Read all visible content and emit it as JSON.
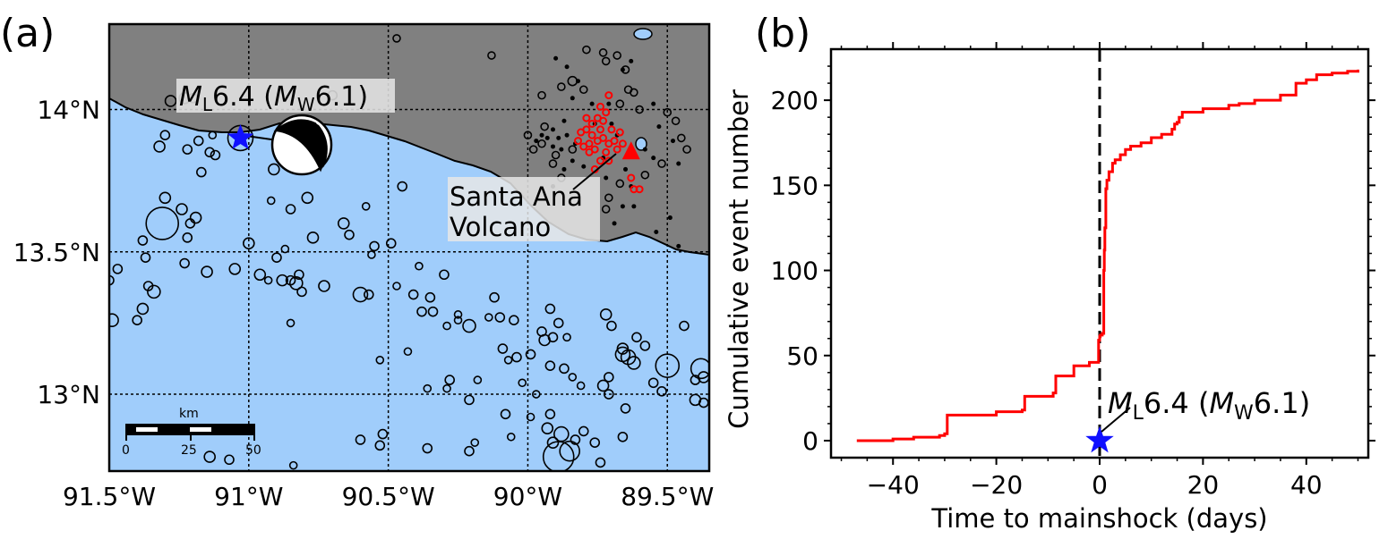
{
  "panel_a": {
    "label": "(a)",
    "x_ticks": [
      {
        "lon": -91.5,
        "text": "91.5°W"
      },
      {
        "lon": -91.0,
        "text": "91°W"
      },
      {
        "lon": -90.5,
        "text": "90.5°W"
      },
      {
        "lon": -90.0,
        "text": "90°W"
      },
      {
        "lon": -89.5,
        "text": "89.5°W"
      }
    ],
    "y_ticks": [
      {
        "lat": 14.0,
        "text": "14°N"
      },
      {
        "lat": 13.5,
        "text": "13.5°N"
      },
      {
        "lat": 13.0,
        "text": "13°N"
      }
    ],
    "extent": {
      "lon_min": -91.5,
      "lon_max": -89.35,
      "lat_min": 12.73,
      "lat_max": 14.3
    },
    "colors": {
      "land": "#808080",
      "ocean": "#a0cdfb",
      "swarm": "#ff0000",
      "mainshock": "#1010ff",
      "volcano": "#ff0000"
    },
    "mainshock": {
      "lon": -91.03,
      "lat": 13.9,
      "label_M": "M",
      "label_L": "L",
      "label_val": "6.4 (",
      "label_Mw": "M",
      "label_W": "W",
      "label_end": "6.1)"
    },
    "volcano": {
      "lon": -89.63,
      "lat": 13.85,
      "label_line1": "Santa Ana",
      "label_line2": "Volcano"
    },
    "scale_bar": {
      "title": "km",
      "ticks": [
        "0",
        "25",
        "50"
      ]
    },
    "quakes": [
      [
        -91.49,
        13.26,
        7
      ],
      [
        -91.47,
        13.44,
        5
      ],
      [
        -91.38,
        13.3,
        6
      ],
      [
        -91.4,
        13.26,
        5
      ],
      [
        -91.36,
        13.38,
        5
      ],
      [
        -91.34,
        13.36,
        7
      ],
      [
        -91.31,
        13.6,
        18
      ],
      [
        -91.3,
        13.69,
        6
      ],
      [
        -91.24,
        13.65,
        6
      ],
      [
        -91.22,
        13.55,
        5
      ],
      [
        -91.21,
        13.6,
        5
      ],
      [
        -91.19,
        13.62,
        6
      ],
      [
        -91.23,
        13.46,
        5
      ],
      [
        -91.15,
        13.43,
        6
      ],
      [
        -91.14,
        13.85,
        5
      ],
      [
        -91.17,
        13.78,
        5
      ],
      [
        -91.32,
        13.87,
        6
      ],
      [
        -91.22,
        13.86,
        5
      ],
      [
        -91.28,
        14.03,
        6
      ],
      [
        -91.3,
        13.91,
        5
      ],
      [
        -91.18,
        13.89,
        5
      ],
      [
        -91.2,
        14.04,
        5
      ],
      [
        -91.13,
        13.91,
        4
      ],
      [
        -91.12,
        13.84,
        5
      ],
      [
        -91.03,
        13.9,
        14
      ],
      [
        -90.91,
        13.79,
        6
      ],
      [
        -90.92,
        13.68,
        4
      ],
      [
        -90.79,
        13.69,
        6
      ],
      [
        -90.85,
        13.65,
        5
      ],
      [
        -90.77,
        13.55,
        6
      ],
      [
        -91.05,
        13.44,
        6
      ],
      [
        -90.96,
        13.42,
        6
      ],
      [
        -90.93,
        13.4,
        4
      ],
      [
        -90.88,
        13.4,
        6
      ],
      [
        -90.85,
        13.4,
        5
      ],
      [
        -90.83,
        13.39,
        7
      ],
      [
        -90.81,
        13.36,
        5
      ],
      [
        -90.82,
        13.42,
        5
      ],
      [
        -90.85,
        13.25,
        4
      ],
      [
        -91.0,
        13.53,
        6
      ],
      [
        -90.87,
        13.51,
        4
      ],
      [
        -90.66,
        13.6,
        6
      ],
      [
        -90.64,
        13.56,
        5
      ],
      [
        -90.56,
        13.49,
        4
      ],
      [
        -90.55,
        13.52,
        5
      ],
      [
        -90.6,
        13.35,
        8
      ],
      [
        -90.73,
        13.38,
        6
      ],
      [
        -90.57,
        13.35,
        5
      ],
      [
        -90.49,
        13.53,
        5
      ],
      [
        -90.47,
        13.38,
        4
      ],
      [
        -90.41,
        13.35,
        5
      ],
      [
        -90.38,
        13.29,
        5
      ],
      [
        -90.35,
        13.34,
        5
      ],
      [
        -90.29,
        13.24,
        4
      ],
      [
        -90.34,
        13.29,
        5
      ],
      [
        -90.3,
        13.42,
        5
      ],
      [
        -90.25,
        13.28,
        4
      ],
      [
        -90.25,
        13.26,
        4
      ],
      [
        -90.21,
        13.24,
        7
      ],
      [
        -90.28,
        13.05,
        5
      ],
      [
        -90.21,
        12.98,
        5
      ],
      [
        -90.18,
        13.05,
        4
      ],
      [
        -90.14,
        13.27,
        4
      ],
      [
        -90.12,
        13.34,
        5
      ],
      [
        -90.1,
        13.27,
        5
      ],
      [
        -90.05,
        13.26,
        5
      ],
      [
        -90.09,
        13.16,
        5
      ],
      [
        -90.07,
        13.12,
        4
      ],
      [
        -90.04,
        13.13,
        5
      ],
      [
        -90.02,
        13.04,
        4
      ],
      [
        -89.97,
        13.0,
        4
      ],
      [
        -89.99,
        13.14,
        5
      ],
      [
        -89.94,
        13.19,
        6
      ],
      [
        -89.91,
        13.2,
        5
      ],
      [
        -89.89,
        13.25,
        5
      ],
      [
        -89.92,
        13.3,
        5
      ],
      [
        -89.95,
        13.22,
        5
      ],
      [
        -89.86,
        13.2,
        4
      ],
      [
        -89.92,
        13.1,
        5
      ],
      [
        -89.87,
        13.09,
        5
      ],
      [
        -89.84,
        13.06,
        4
      ],
      [
        -89.81,
        13.03,
        4
      ],
      [
        -89.72,
        13.28,
        6
      ],
      [
        -89.7,
        13.24,
        5
      ],
      [
        -89.71,
        13.06,
        5
      ],
      [
        -89.73,
        13.03,
        6
      ],
      [
        -89.71,
        13.0,
        5
      ],
      [
        -89.66,
        13.14,
        8
      ],
      [
        -89.64,
        13.13,
        8
      ],
      [
        -89.62,
        13.11,
        7
      ],
      [
        -89.66,
        13.16,
        6
      ],
      [
        -89.61,
        13.2,
        5
      ],
      [
        -89.65,
        12.95,
        5
      ],
      [
        -89.58,
        13.17,
        5
      ],
      [
        -89.55,
        13.04,
        5
      ],
      [
        -89.52,
        13.01,
        5
      ],
      [
        -89.5,
        13.1,
        13
      ],
      [
        -89.44,
        13.24,
        5
      ],
      [
        -89.4,
        12.98,
        6
      ],
      [
        -89.38,
        13.09,
        11
      ],
      [
        -89.37,
        13.06,
        6
      ],
      [
        -89.4,
        13.05,
        5
      ],
      [
        -89.37,
        12.97,
        5
      ],
      [
        -89.93,
        12.88,
        6
      ],
      [
        -89.88,
        12.86,
        8
      ],
      [
        -89.91,
        12.83,
        6
      ],
      [
        -89.85,
        12.8,
        11
      ],
      [
        -89.89,
        12.78,
        17
      ],
      [
        -89.83,
        12.84,
        5
      ],
      [
        -89.76,
        12.83,
        5
      ],
      [
        -89.8,
        12.87,
        5
      ],
      [
        -89.74,
        12.76,
        5
      ],
      [
        -89.66,
        12.85,
        5
      ],
      [
        -89.92,
        12.93,
        5
      ],
      [
        -89.99,
        12.92,
        4
      ],
      [
        -90.06,
        12.85,
        4
      ],
      [
        -90.08,
        12.93,
        5
      ],
      [
        -90.19,
        12.83,
        4
      ],
      [
        -90.36,
        12.81,
        5
      ],
      [
        -90.53,
        12.82,
        5
      ],
      [
        -90.52,
        12.86,
        5
      ],
      [
        -90.21,
        12.8,
        5
      ],
      [
        -90.53,
        13.12,
        4
      ],
      [
        -90.43,
        13.15,
        4
      ],
      [
        -90.36,
        13.02,
        4
      ],
      [
        -90.29,
        13.02,
        4
      ],
      [
        -91.14,
        12.78,
        6
      ],
      [
        -91.07,
        12.77,
        5
      ],
      [
        -90.84,
        12.75,
        4
      ],
      [
        -90.6,
        12.84,
        5
      ],
      [
        -91.5,
        13.4,
        5
      ],
      [
        -91.38,
        13.54,
        5
      ],
      [
        -91.37,
        13.48,
        5
      ],
      [
        -90.9,
        13.48,
        5
      ],
      [
        -90.58,
        13.66,
        4
      ],
      [
        -90.45,
        13.73,
        5
      ],
      [
        -90.39,
        13.45,
        4
      ],
      [
        -90.7,
        14.05,
        5
      ],
      [
        -91.23,
        14.04,
        6
      ],
      [
        -90.47,
        14.25,
        4
      ],
      [
        -90.13,
        14.19,
        4
      ],
      [
        -89.95,
        14.05,
        4
      ],
      [
        -89.88,
        14.08,
        4
      ],
      [
        -89.84,
        14.1,
        5
      ],
      [
        -89.8,
        14.07,
        4
      ],
      [
        -89.79,
        14.21,
        4
      ],
      [
        -89.73,
        14.2,
        4
      ],
      [
        -89.72,
        14.17,
        4
      ],
      [
        -89.68,
        14.19,
        4
      ],
      [
        -89.65,
        14.14,
        4
      ],
      [
        -89.64,
        14.07,
        4
      ],
      [
        -89.62,
        14.06,
        4
      ],
      [
        -89.6,
        14.0,
        4
      ],
      [
        -89.67,
        14.02,
        4
      ],
      [
        -89.5,
        13.99,
        4
      ],
      [
        -89.47,
        13.96,
        4
      ],
      [
        -89.45,
        13.9,
        4
      ],
      [
        -89.43,
        13.86,
        4
      ],
      [
        -89.52,
        13.81,
        4
      ],
      [
        -89.58,
        13.77,
        4
      ],
      [
        -89.67,
        13.74,
        4
      ],
      [
        -89.72,
        13.65,
        4
      ],
      [
        -89.95,
        13.88,
        4
      ],
      [
        -89.98,
        13.86,
        4
      ],
      [
        -90.0,
        13.91,
        4
      ],
      [
        -89.94,
        13.94,
        4
      ],
      [
        -89.91,
        13.81,
        4
      ],
      [
        -89.88,
        13.76,
        4
      ],
      [
        -89.84,
        13.86,
        4
      ],
      [
        -89.9,
        13.84,
        4
      ],
      [
        -89.71,
        13.69,
        4
      ]
    ],
    "black_dots": [
      [
        -89.86,
        13.91
      ],
      [
        -89.89,
        13.9
      ],
      [
        -89.88,
        13.86
      ],
      [
        -89.91,
        13.87
      ],
      [
        -89.83,
        13.88
      ],
      [
        -89.84,
        13.82
      ],
      [
        -89.8,
        13.8
      ],
      [
        -89.87,
        13.79
      ],
      [
        -89.93,
        13.9
      ],
      [
        -89.95,
        13.91
      ],
      [
        -89.97,
        13.89
      ],
      [
        -89.91,
        13.93
      ],
      [
        -89.87,
        13.96
      ],
      [
        -89.84,
        14.04
      ],
      [
        -89.77,
        14.02
      ],
      [
        -89.71,
        14.02
      ],
      [
        -89.76,
        13.95
      ],
      [
        -89.7,
        13.95
      ],
      [
        -89.68,
        13.91
      ],
      [
        -89.73,
        13.83
      ],
      [
        -89.65,
        13.79
      ],
      [
        -89.63,
        13.73
      ],
      [
        -89.58,
        13.86
      ],
      [
        -89.55,
        13.83
      ],
      [
        -89.53,
        13.94
      ],
      [
        -89.55,
        14.02
      ],
      [
        -89.66,
        14.14
      ],
      [
        -89.63,
        14.17
      ],
      [
        -89.82,
        14.1
      ],
      [
        -89.86,
        14.15
      ],
      [
        -89.9,
        14.18
      ],
      [
        -89.48,
        13.89
      ],
      [
        -89.46,
        13.81
      ],
      [
        -89.62,
        13.66
      ],
      [
        -89.66,
        13.66
      ],
      [
        -89.72,
        13.76
      ],
      [
        -89.91,
        13.73
      ],
      [
        -89.69,
        13.6
      ],
      [
        -89.54,
        13.57
      ],
      [
        -89.49,
        13.62
      ],
      [
        -89.46,
        13.52
      ]
    ],
    "red_dots": [
      [
        -89.75,
        13.89
      ],
      [
        -89.73,
        13.9
      ],
      [
        -89.77,
        13.91
      ],
      [
        -89.74,
        13.93
      ],
      [
        -89.71,
        13.88
      ],
      [
        -89.76,
        13.86
      ],
      [
        -89.72,
        13.85
      ],
      [
        -89.78,
        13.88
      ],
      [
        -89.8,
        13.87
      ],
      [
        -89.74,
        13.82
      ],
      [
        -89.69,
        13.89
      ],
      [
        -89.7,
        13.93
      ],
      [
        -89.73,
        13.96
      ],
      [
        -89.77,
        13.95
      ],
      [
        -89.78,
        13.85
      ],
      [
        -89.81,
        13.92
      ],
      [
        -89.76,
        13.79
      ],
      [
        -89.71,
        13.82
      ],
      [
        -89.68,
        13.86
      ],
      [
        -89.72,
        13.99
      ],
      [
        -89.74,
        14.01
      ],
      [
        -89.67,
        13.92
      ],
      [
        -89.82,
        13.89
      ],
      [
        -89.79,
        13.93
      ],
      [
        -89.71,
        14.05
      ],
      [
        -89.66,
        13.88
      ],
      [
        -89.62,
        13.72
      ],
      [
        -89.6,
        13.72
      ],
      [
        -89.63,
        13.76
      ],
      [
        -89.79,
        13.97
      ],
      [
        -89.75,
        13.97
      ]
    ]
  },
  "panel_b": {
    "label": "(b)",
    "chart_data": {
      "type": "line",
      "title": "",
      "xlabel": "Time to mainshock (days)",
      "ylabel": "Cumulative event number",
      "xlim": [
        -52,
        52
      ],
      "ylim": [
        -10,
        230
      ],
      "xticks": [
        -40,
        -20,
        0,
        20,
        40
      ],
      "yticks": [
        0,
        50,
        100,
        150,
        200
      ],
      "series": [
        {
          "color": "#ff0000",
          "x": [
            -47,
            -40,
            -36,
            -31,
            -30,
            -29.5,
            -20,
            -15,
            -14.5,
            -9,
            -8.5,
            -5,
            -2,
            -0.3,
            -0.2,
            0,
            0.1,
            0.2,
            0.5,
            0.8,
            0.9,
            1.0,
            1.2,
            1.4,
            1.8,
            2.5,
            3,
            4,
            5,
            6,
            8,
            10,
            12,
            14,
            14.5,
            15,
            15.4,
            16,
            20,
            25,
            27,
            30,
            35,
            38,
            40,
            42,
            45,
            48,
            50
          ],
          "y": [
            0,
            1,
            2,
            3,
            4,
            15,
            17,
            18,
            26,
            28,
            38,
            44,
            46,
            46,
            59,
            61,
            62,
            62,
            63,
            100,
            112,
            125,
            148,
            153,
            158,
            163,
            165,
            168,
            171,
            173,
            175,
            178,
            180,
            183,
            186,
            187,
            190,
            193,
            195,
            197,
            198,
            200,
            203,
            210,
            212,
            215,
            216,
            217,
            218
          ]
        }
      ],
      "mainshock_marker": {
        "x": 0,
        "y": 0
      },
      "annotation": {
        "M": "M",
        "L": "L",
        "val": "6.4 (",
        "Mw": "M",
        "W": "W",
        "end": "6.1)"
      }
    }
  }
}
